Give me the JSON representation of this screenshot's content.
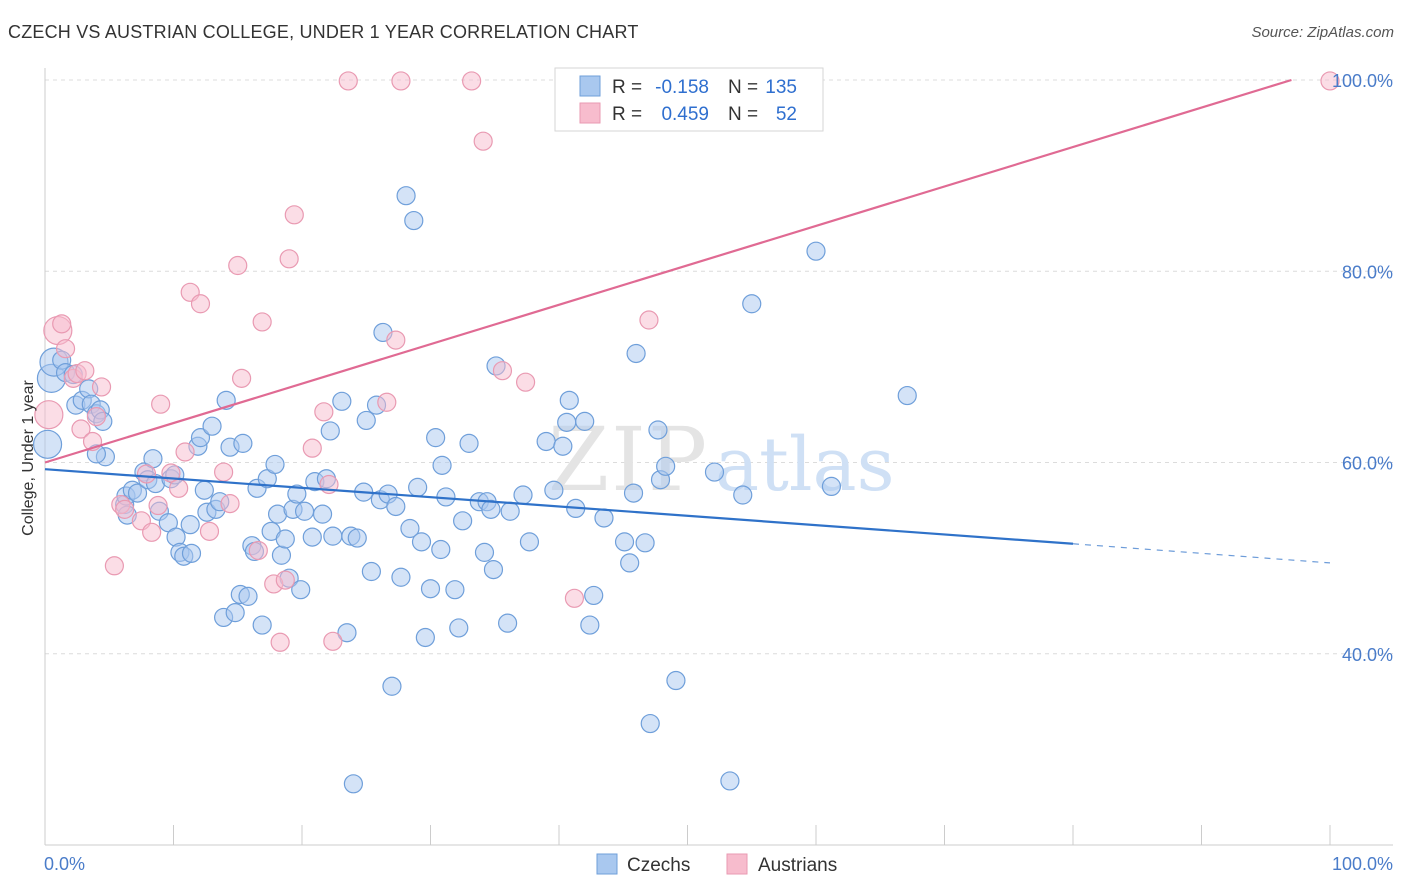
{
  "title": "CZECH VS AUSTRIAN COLLEGE, UNDER 1 YEAR CORRELATION CHART",
  "source": "Source: ZipAtlas.com",
  "watermark": {
    "zip": "ZIP",
    "atlas": "atlas"
  },
  "legend": {
    "rows": [
      {
        "r_label": "R =",
        "r_value": "-0.158",
        "n_label": "N =",
        "n_value": "135",
        "color": "#a9c8ef"
      },
      {
        "r_label": "R =",
        "r_value": "0.459",
        "n_label": "N =",
        "n_value": "52",
        "color": "#f7bccd"
      }
    ]
  },
  "colors": {
    "czech_fill": "#a9c8ef",
    "czech_stroke": "#6f9fda",
    "czech_line": "#2f72c9",
    "austrian_fill": "#f7bccd",
    "austrian_stroke": "#e99ab2",
    "austrian_line": "#e06a93",
    "tick_text": "#4a7cc9",
    "grid": "#dcdcdc"
  },
  "chart_data": {
    "type": "scatter",
    "title": "CZECH VS AUSTRIAN COLLEGE, UNDER 1 YEAR CORRELATION CHART",
    "xlabel": "",
    "ylabel": "College, Under 1 year",
    "xlim": [
      0,
      100
    ],
    "ylim": [
      20,
      100
    ],
    "x_tick_labels": [
      "0.0%",
      "100.0%"
    ],
    "y_ticks": [
      40,
      60,
      80,
      100
    ],
    "y_tick_labels": [
      "40.0%",
      "60.0%",
      "80.0%",
      "100.0%"
    ],
    "grid": true,
    "legend_position": "bottom",
    "series": [
      {
        "name": "Czechs",
        "trend": {
          "x0": 0,
          "y0": 59.3,
          "x1": 80,
          "y1": 51.5,
          "dashed_to": 100,
          "dashed_y": 49.5
        },
        "points": [
          [
            0.2,
            61.9
          ],
          [
            0.5,
            68.8
          ],
          [
            0.7,
            70.5
          ],
          [
            1.3,
            70.7
          ],
          [
            1.6,
            69.4
          ],
          [
            2.2,
            69.2
          ],
          [
            2.4,
            66.0
          ],
          [
            2.9,
            66.5
          ],
          [
            3.4,
            67.7
          ],
          [
            3.6,
            66.1
          ],
          [
            4.0,
            65.1
          ],
          [
            4.3,
            65.5
          ],
          [
            4.5,
            64.3
          ],
          [
            4.7,
            60.6
          ],
          [
            4.0,
            60.9
          ],
          [
            6.2,
            55.6
          ],
          [
            6.3,
            56.5
          ],
          [
            6.4,
            54.5
          ],
          [
            6.8,
            57.1
          ],
          [
            7.2,
            56.8
          ],
          [
            7.7,
            59.0
          ],
          [
            8.0,
            58.2
          ],
          [
            8.4,
            60.4
          ],
          [
            8.6,
            57.8
          ],
          [
            8.9,
            54.9
          ],
          [
            9.6,
            53.7
          ],
          [
            9.8,
            58.3
          ],
          [
            10.1,
            58.7
          ],
          [
            10.2,
            52.2
          ],
          [
            10.5,
            50.6
          ],
          [
            10.8,
            50.2
          ],
          [
            11.4,
            50.5
          ],
          [
            11.3,
            53.5
          ],
          [
            11.9,
            61.7
          ],
          [
            12.1,
            62.6
          ],
          [
            12.4,
            57.1
          ],
          [
            12.6,
            54.8
          ],
          [
            13.0,
            63.8
          ],
          [
            13.3,
            55.1
          ],
          [
            13.6,
            55.9
          ],
          [
            13.9,
            43.8
          ],
          [
            14.1,
            66.5
          ],
          [
            14.4,
            61.6
          ],
          [
            14.8,
            44.3
          ],
          [
            15.2,
            46.2
          ],
          [
            15.4,
            62.0
          ],
          [
            15.8,
            46.0
          ],
          [
            16.1,
            51.3
          ],
          [
            16.3,
            50.7
          ],
          [
            16.5,
            57.3
          ],
          [
            16.9,
            43.0
          ],
          [
            17.3,
            58.3
          ],
          [
            17.6,
            52.8
          ],
          [
            17.9,
            59.8
          ],
          [
            18.1,
            54.6
          ],
          [
            18.4,
            50.3
          ],
          [
            18.7,
            52.0
          ],
          [
            19.0,
            47.9
          ],
          [
            19.3,
            55.1
          ],
          [
            19.6,
            56.7
          ],
          [
            19.9,
            46.7
          ],
          [
            20.2,
            54.9
          ],
          [
            21.0,
            58.0
          ],
          [
            20.8,
            52.2
          ],
          [
            21.6,
            54.6
          ],
          [
            21.9,
            58.3
          ],
          [
            22.2,
            63.3
          ],
          [
            22.4,
            52.3
          ],
          [
            23.1,
            66.4
          ],
          [
            23.5,
            42.2
          ],
          [
            23.8,
            52.3
          ],
          [
            24.0,
            26.4
          ],
          [
            24.3,
            52.1
          ],
          [
            24.8,
            56.9
          ],
          [
            25.0,
            64.4
          ],
          [
            25.4,
            48.6
          ],
          [
            25.8,
            66.0
          ],
          [
            26.1,
            56.1
          ],
          [
            26.3,
            73.6
          ],
          [
            26.7,
            56.7
          ],
          [
            27.0,
            36.6
          ],
          [
            27.3,
            55.4
          ],
          [
            27.7,
            48.0
          ],
          [
            28.1,
            87.9
          ],
          [
            28.4,
            53.1
          ],
          [
            28.7,
            85.3
          ],
          [
            29.0,
            57.4
          ],
          [
            29.3,
            51.7
          ],
          [
            29.6,
            41.7
          ],
          [
            30.0,
            46.8
          ],
          [
            30.4,
            62.6
          ],
          [
            30.8,
            50.9
          ],
          [
            30.9,
            59.7
          ],
          [
            31.2,
            56.4
          ],
          [
            31.9,
            46.7
          ],
          [
            32.2,
            42.7
          ],
          [
            32.5,
            53.9
          ],
          [
            33.0,
            62.0
          ],
          [
            33.8,
            55.9
          ],
          [
            34.2,
            50.6
          ],
          [
            34.4,
            55.9
          ],
          [
            34.7,
            55.1
          ],
          [
            34.9,
            48.8
          ],
          [
            35.1,
            70.1
          ],
          [
            36.0,
            43.2
          ],
          [
            36.2,
            54.9
          ],
          [
            37.2,
            56.6
          ],
          [
            37.7,
            51.7
          ],
          [
            39.0,
            62.2
          ],
          [
            39.6,
            57.1
          ],
          [
            40.3,
            61.7
          ],
          [
            40.6,
            64.2
          ],
          [
            40.8,
            66.5
          ],
          [
            41.3,
            55.2
          ],
          [
            42.0,
            64.3
          ],
          [
            42.4,
            43.0
          ],
          [
            42.7,
            46.1
          ],
          [
            43.5,
            54.2
          ],
          [
            45.1,
            51.7
          ],
          [
            45.5,
            49.5
          ],
          [
            45.8,
            56.8
          ],
          [
            46.0,
            71.4
          ],
          [
            46.7,
            51.6
          ],
          [
            47.1,
            32.7
          ],
          [
            47.7,
            63.4
          ],
          [
            47.9,
            58.2
          ],
          [
            48.3,
            59.6
          ],
          [
            49.1,
            37.2
          ],
          [
            52.1,
            59.0
          ],
          [
            53.3,
            26.7
          ],
          [
            54.3,
            56.6
          ],
          [
            55.0,
            76.6
          ],
          [
            60.0,
            82.1
          ],
          [
            61.2,
            57.5
          ],
          [
            67.1,
            67.0
          ]
        ]
      },
      {
        "name": "Austrians",
        "trend": {
          "x0": 0,
          "y0": 60.0,
          "x1": 97.0,
          "y1": 100.0
        },
        "points": [
          [
            0.3,
            65.0
          ],
          [
            1.0,
            73.8
          ],
          [
            1.3,
            74.5
          ],
          [
            1.6,
            71.9
          ],
          [
            2.2,
            68.8
          ],
          [
            2.5,
            69.3
          ],
          [
            2.8,
            63.5
          ],
          [
            3.1,
            69.6
          ],
          [
            3.7,
            62.2
          ],
          [
            4.0,
            64.8
          ],
          [
            4.4,
            67.9
          ],
          [
            5.4,
            49.2
          ],
          [
            5.9,
            55.6
          ],
          [
            6.2,
            55.1
          ],
          [
            7.5,
            53.9
          ],
          [
            7.9,
            58.8
          ],
          [
            8.3,
            52.7
          ],
          [
            8.8,
            55.5
          ],
          [
            9.0,
            66.1
          ],
          [
            9.8,
            58.9
          ],
          [
            10.4,
            57.3
          ],
          [
            10.9,
            61.1
          ],
          [
            11.3,
            77.8
          ],
          [
            12.1,
            76.6
          ],
          [
            12.8,
            52.8
          ],
          [
            13.9,
            59.0
          ],
          [
            14.4,
            55.7
          ],
          [
            15.0,
            80.6
          ],
          [
            15.3,
            68.8
          ],
          [
            16.6,
            50.8
          ],
          [
            16.9,
            74.7
          ],
          [
            17.8,
            47.3
          ],
          [
            18.3,
            41.2
          ],
          [
            18.7,
            47.7
          ],
          [
            19.0,
            81.3
          ],
          [
            19.4,
            85.9
          ],
          [
            20.8,
            61.5
          ],
          [
            21.7,
            65.3
          ],
          [
            22.1,
            57.7
          ],
          [
            22.4,
            41.3
          ],
          [
            23.6,
            99.9
          ],
          [
            26.6,
            66.3
          ],
          [
            27.3,
            72.8
          ],
          [
            27.7,
            99.9
          ],
          [
            33.2,
            99.9
          ],
          [
            34.1,
            93.6
          ],
          [
            35.6,
            69.6
          ],
          [
            37.4,
            68.4
          ],
          [
            41.2,
            45.8
          ],
          [
            45.4,
            96.3
          ],
          [
            47.0,
            74.9
          ],
          [
            100.0,
            99.9
          ]
        ]
      }
    ]
  }
}
